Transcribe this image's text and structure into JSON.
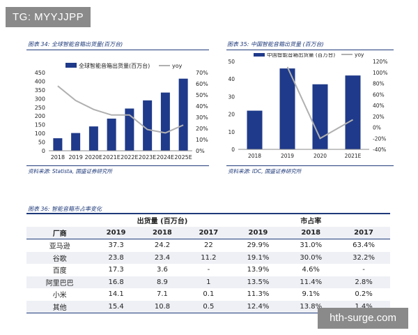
{
  "watermark_top": "TG: MYYJJPP",
  "watermark_bottom": "hth-surge.com",
  "chart34": {
    "title": "图表 34: 全球智能音箱出货量(百万台)",
    "source": "资料来源: Statista, 国盛证券研究所",
    "legend_bar": "全球智能音箱出货量(百万台)",
    "legend_line": "yoy",
    "bar_color": "#1f3a8a",
    "line_color": "#b0b0b0",
    "yticks_left": [
      "0",
      "50",
      "100",
      "150",
      "200",
      "250",
      "300",
      "350",
      "400",
      "450"
    ],
    "yticks_right": [
      "0%",
      "10%",
      "20%",
      "30%",
      "40%",
      "50%",
      "60%",
      "70%"
    ]
  },
  "chart35": {
    "title": "图表 35: 中国智能音箱出货量 (百万台)",
    "source": "资料来源: IDC, 国盛证券研究所",
    "legend_bar": "中国智能音箱出货量 (百万台)",
    "legend_line": "yoy",
    "bar_color": "#1f3a8a",
    "line_color": "#b0b0b0",
    "yticks_left": [
      "0",
      "10",
      "20",
      "30",
      "40",
      "50"
    ],
    "yticks_right": [
      "-40%",
      "-20%",
      "0%",
      "20%",
      "40%",
      "60%",
      "80%",
      "100%",
      "120%"
    ]
  },
  "table36": {
    "title": "图表 36: 智能音箱市占率变化",
    "group_shipments": "出货量 (百万台)",
    "group_share": "市占率",
    "col_vendor": "厂商",
    "years": [
      "2019",
      "2018",
      "2017",
      "2019",
      "2018",
      "2017"
    ],
    "rows": [
      {
        "vendor": "亚马逊",
        "vals": [
          "37.3",
          "24.2",
          "22",
          "29.9%",
          "31.0%",
          "63.4%"
        ]
      },
      {
        "vendor": "谷歌",
        "vals": [
          "23.8",
          "23.4",
          "11.2",
          "19.1%",
          "30.0%",
          "32.2%"
        ]
      },
      {
        "vendor": "百度",
        "vals": [
          "17.3",
          "3.6",
          "-",
          "13.9%",
          "4.6%",
          "-"
        ]
      },
      {
        "vendor": "阿里巴巴",
        "vals": [
          "16.8",
          "8.9",
          "1",
          "13.5%",
          "11.4%",
          "2.8%"
        ]
      },
      {
        "vendor": "小米",
        "vals": [
          "14.1",
          "7.1",
          "0.1",
          "11.3%",
          "9.1%",
          "0.2%"
        ]
      },
      {
        "vendor": "其他",
        "vals": [
          "15.4",
          "10.8",
          "0.5",
          "12.4%",
          "13.8%",
          "1.4%"
        ]
      }
    ]
  },
  "chart_data": [
    {
      "type": "bar",
      "title": "图表 34: 全球智能音箱出货量(百万台)",
      "categories": [
        "2018",
        "2019",
        "2020E",
        "2021E",
        "2022E",
        "2023E",
        "2024E",
        "2025E"
      ],
      "series": [
        {
          "name": "全球智能音箱出货量(百万台)",
          "type": "bar",
          "axis": "left",
          "values": [
            72,
            102,
            140,
            185,
            243,
            290,
            335,
            415
          ]
        },
        {
          "name": "yoy",
          "type": "line",
          "axis": "right",
          "values": [
            0.58,
            0.45,
            0.37,
            0.32,
            0.32,
            0.19,
            0.16,
            0.23
          ]
        }
      ],
      "ylim_left": [
        0,
        450
      ],
      "ylim_right": [
        0,
        0.7
      ],
      "legend": "top"
    },
    {
      "type": "bar",
      "title": "图表 35: 中国智能音箱出货量 (百万台)",
      "categories": [
        "2018",
        "2019",
        "2020",
        "2021E"
      ],
      "series": [
        {
          "name": "中国智能音箱出货量 (百万台)",
          "type": "bar",
          "axis": "left",
          "values": [
            22,
            46,
            37,
            42
          ]
        },
        {
          "name": "yoy",
          "type": "line",
          "axis": "right",
          "values": [
            null,
            1.1,
            -0.2,
            0.14
          ]
        }
      ],
      "ylim_left": [
        0,
        50
      ],
      "ylim_right": [
        -0.4,
        1.2
      ],
      "legend": "top"
    },
    {
      "type": "table",
      "title": "图表 36: 智能音箱市占率变化",
      "columns": [
        "厂商",
        "出货量 2019",
        "出货量 2018",
        "出货量 2017",
        "市占率 2019",
        "市占率 2018",
        "市占率 2017"
      ],
      "rows": [
        [
          "亚马逊",
          "37.3",
          "24.2",
          "22",
          "29.9%",
          "31.0%",
          "63.4%"
        ],
        [
          "谷歌",
          "23.8",
          "23.4",
          "11.2",
          "19.1%",
          "30.0%",
          "32.2%"
        ],
        [
          "百度",
          "17.3",
          "3.6",
          "-",
          "13.9%",
          "4.6%",
          "-"
        ],
        [
          "阿里巴巴",
          "16.8",
          "8.9",
          "1",
          "13.5%",
          "11.4%",
          "2.8%"
        ],
        [
          "小米",
          "14.1",
          "7.1",
          "0.1",
          "11.3%",
          "9.1%",
          "0.2%"
        ],
        [
          "其他",
          "15.4",
          "10.8",
          "0.5",
          "12.4%",
          "13.8%",
          "1.4%"
        ]
      ]
    }
  ]
}
